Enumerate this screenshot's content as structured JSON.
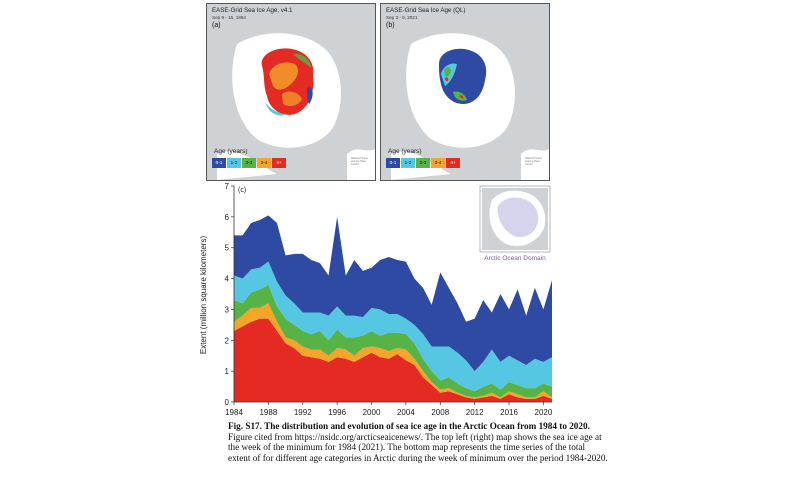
{
  "maps": [
    {
      "title": "EASE-Grid Sea Ice Age, v4.1",
      "date": "Sep 9 - 15, 1984",
      "letter": "(a)",
      "age_label": "Age (years)",
      "legend": [
        "0-1",
        "1-2",
        "2-3",
        "3-4",
        "4+"
      ],
      "copyright": "National Snow and Ice Data Center"
    },
    {
      "title": "EASE-Grid Sea Ice Age (QL)",
      "date": "Sep 3 - 9, 2021",
      "letter": "(b)",
      "age_label": "Age (years)",
      "legend": [
        "0-1",
        "1-2",
        "2-3",
        "3-4",
        "4+"
      ],
      "copyright": "National Snow and Ice Data Center"
    }
  ],
  "colors": {
    "age_0_1": "#2e4aa3",
    "age_1_2": "#56c7e3",
    "age_2_3": "#58b347",
    "age_3_4": "#f4a52a",
    "age_4_plus": "#e32b24",
    "land": "#cfd2d5",
    "ocean": "#ffffff",
    "domain_fill": "#d6d3ec",
    "domain_label": "#7f5aa6"
  },
  "chart_data": {
    "type": "area",
    "panel_label": "(c)",
    "ylabel": "Extent (million square kilometers)",
    "xlabel": "",
    "ylim": [
      0,
      7
    ],
    "xlim": [
      1984,
      2021
    ],
    "x_ticks": [
      1984,
      1988,
      1992,
      1996,
      2000,
      2004,
      2008,
      2012,
      2016,
      2020
    ],
    "y_ticks": [
      0,
      1,
      2,
      3,
      4,
      5,
      6,
      7
    ],
    "stacking": "cumulative",
    "inset_label": "Arctic Ocean Domain",
    "x": [
      1984,
      1985,
      1986,
      1987,
      1988,
      1989,
      1990,
      1991,
      1992,
      1993,
      1994,
      1995,
      1996,
      1997,
      1998,
      1999,
      2000,
      2001,
      2002,
      2003,
      2004,
      2005,
      2006,
      2007,
      2008,
      2009,
      2010,
      2011,
      2012,
      2013,
      2014,
      2015,
      2016,
      2017,
      2018,
      2019,
      2020,
      2021
    ],
    "series": [
      {
        "name": "4+",
        "values": [
          2.3,
          2.45,
          2.6,
          2.7,
          2.7,
          2.3,
          1.9,
          1.75,
          1.5,
          1.45,
          1.4,
          1.3,
          1.45,
          1.4,
          1.3,
          1.45,
          1.6,
          1.45,
          1.4,
          1.55,
          1.35,
          1.2,
          0.8,
          0.55,
          0.3,
          0.35,
          0.25,
          0.15,
          0.1,
          0.15,
          0.2,
          0.1,
          0.25,
          0.15,
          0.1,
          0.1,
          0.2,
          0.1
        ]
      },
      {
        "name": "3-4",
        "values": [
          0.3,
          0.35,
          0.45,
          0.35,
          0.5,
          0.3,
          0.2,
          0.25,
          0.3,
          0.25,
          0.3,
          0.2,
          0.3,
          0.3,
          0.2,
          0.3,
          0.2,
          0.3,
          0.25,
          0.2,
          0.35,
          0.2,
          0.2,
          0.1,
          0.1,
          0.1,
          0.05,
          0.05,
          0.05,
          0.05,
          0.1,
          0.05,
          0.1,
          0.1,
          0.05,
          0.05,
          0.15,
          0.05
        ]
      },
      {
        "name": "2-3",
        "values": [
          0.7,
          0.4,
          0.5,
          0.6,
          0.6,
          0.5,
          0.6,
          0.5,
          0.5,
          0.5,
          0.6,
          0.5,
          0.6,
          0.4,
          0.6,
          0.4,
          0.5,
          0.4,
          0.6,
          0.5,
          0.5,
          0.5,
          0.4,
          0.35,
          0.3,
          0.35,
          0.3,
          0.25,
          0.2,
          0.3,
          0.3,
          0.25,
          0.3,
          0.3,
          0.3,
          0.3,
          0.25,
          0.35
        ]
      },
      {
        "name": "1-2",
        "values": [
          0.8,
          0.8,
          0.75,
          0.7,
          0.75,
          0.8,
          0.75,
          0.7,
          0.6,
          0.7,
          0.6,
          0.8,
          0.75,
          0.7,
          0.7,
          0.6,
          0.75,
          0.85,
          0.6,
          0.6,
          0.5,
          0.6,
          0.8,
          0.8,
          1.1,
          1.0,
          1.0,
          0.9,
          0.65,
          0.8,
          1.1,
          0.9,
          0.85,
          0.8,
          0.75,
          0.95,
          0.7,
          0.95
        ]
      },
      {
        "name": "0-1",
        "values": [
          1.3,
          1.4,
          1.5,
          1.55,
          1.5,
          1.9,
          1.3,
          1.6,
          1.9,
          1.7,
          1.6,
          1.3,
          2.9,
          1.3,
          1.8,
          1.5,
          1.3,
          1.6,
          1.85,
          1.75,
          1.85,
          1.5,
          1.5,
          1.35,
          2.4,
          1.9,
          1.6,
          1.25,
          1.7,
          2.0,
          1.2,
          2.2,
          1.5,
          2.3,
          1.6,
          2.3,
          1.7,
          2.5
        ]
      }
    ]
  },
  "caption": {
    "title": "Fig. S17. The distribution and evolution of sea ice age in the Arctic Ocean from 1984 to 2020.",
    "body": " Figure cited from https://nsidc.org/arcticseaicenews/. The top left (right) map shows the sea ice age at the week of the minimum for 1984 (2021). The bottom map represents the time series of the total extent of for different age categories in Arctic during the week of minimum over the period 1984-2020."
  }
}
